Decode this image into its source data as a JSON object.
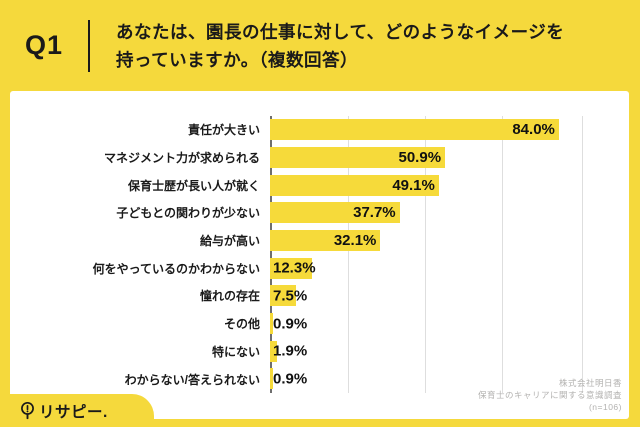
{
  "colors": {
    "frame_yellow": "#F5D93C",
    "bar_yellow": "#F6DA3A",
    "card_bg": "#FFFFFF",
    "text_black": "#1A1A1A",
    "credit_gray": "#B3B2B0"
  },
  "header": {
    "q_label": "Q1",
    "question_line1": "あなたは、園長の仕事に対して、どのようなイメージを",
    "question_line2": "持っていますか。（複数回答）"
  },
  "chart_data": {
    "type": "bar",
    "orientation": "horizontal",
    "title": "",
    "xlabel": "",
    "ylabel": "",
    "xlim": [
      0,
      103.8
    ],
    "grid": "vertical-only",
    "legend": "none",
    "categories": [
      "責任が大きい",
      "マネジメント力が求められる",
      "保育士歴が長い人が就く",
      "子どもとの関わりが少ない",
      "給与が高い",
      "何をやっているのかわからない",
      "憧れの存在",
      "その他",
      "特にない",
      "わからない/答えられない"
    ],
    "values": [
      84.0,
      50.9,
      49.1,
      37.7,
      32.1,
      12.3,
      7.5,
      0.9,
      1.9,
      0.9
    ],
    "value_labels": [
      "84.0%",
      "50.9%",
      "49.1%",
      "37.7%",
      "32.1%",
      "12.3%",
      "7.5%",
      "0.9%",
      "1.9%",
      "0.9%"
    ]
  },
  "footer": {
    "logo_text": "リサピー.",
    "logo_icon": "magnifier-icon",
    "credit_lines": [
      "株式会社明日香",
      "保育士のキャリアに関する意識調査",
      "(n=106)"
    ]
  }
}
